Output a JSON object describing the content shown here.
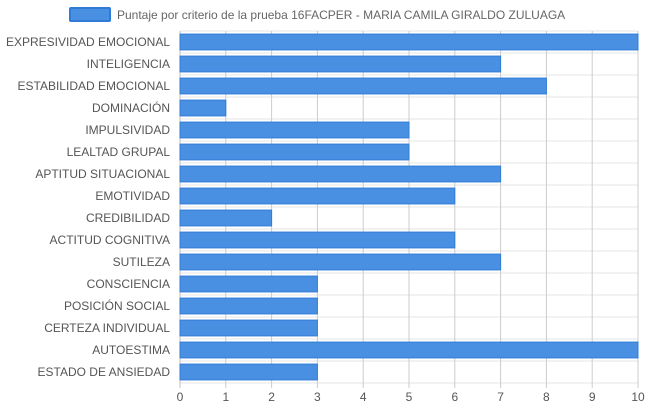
{
  "chart_data": {
    "type": "bar",
    "orientation": "horizontal",
    "legend": {
      "position": "top",
      "label": "Puntaje por criterio de la prueba 16FACPER - MARIA CAMILA GIRALDO ZULUAGA"
    },
    "categories": [
      "EXPRESIVIDAD EMOCIONAL",
      "INTELIGENCIA",
      "ESTABILIDAD EMOCIONAL",
      "DOMINACIÓN",
      "IMPULSIVIDAD",
      "LEALTAD GRUPAL",
      "APTITUD SITUACIONAL",
      "EMOTIVIDAD",
      "CREDIBILIDAD",
      "ACTITUD COGNITIVA",
      "SUTILEZA",
      "CONSCIENCIA",
      "POSICIÓN SOCIAL",
      "CERTEZA INDIVIDUAL",
      "AUTOESTIMA",
      "ESTADO DE ANSIEDAD"
    ],
    "series": [
      {
        "name": "Puntaje por criterio de la prueba 16FACPER - MARIA CAMILA GIRALDO ZULUAGA",
        "values": [
          10,
          7,
          8,
          1,
          5,
          5,
          7,
          6,
          2,
          6,
          7,
          3,
          3,
          3,
          10,
          3
        ]
      }
    ],
    "xlim": [
      0,
      10
    ],
    "xticks": [
      "0",
      "1",
      "2",
      "3",
      "4",
      "5",
      "6",
      "7",
      "8",
      "9",
      "10"
    ],
    "grid": true,
    "bar_color": "#4a90e2",
    "bar_border_color": "#2f7bd6"
  }
}
